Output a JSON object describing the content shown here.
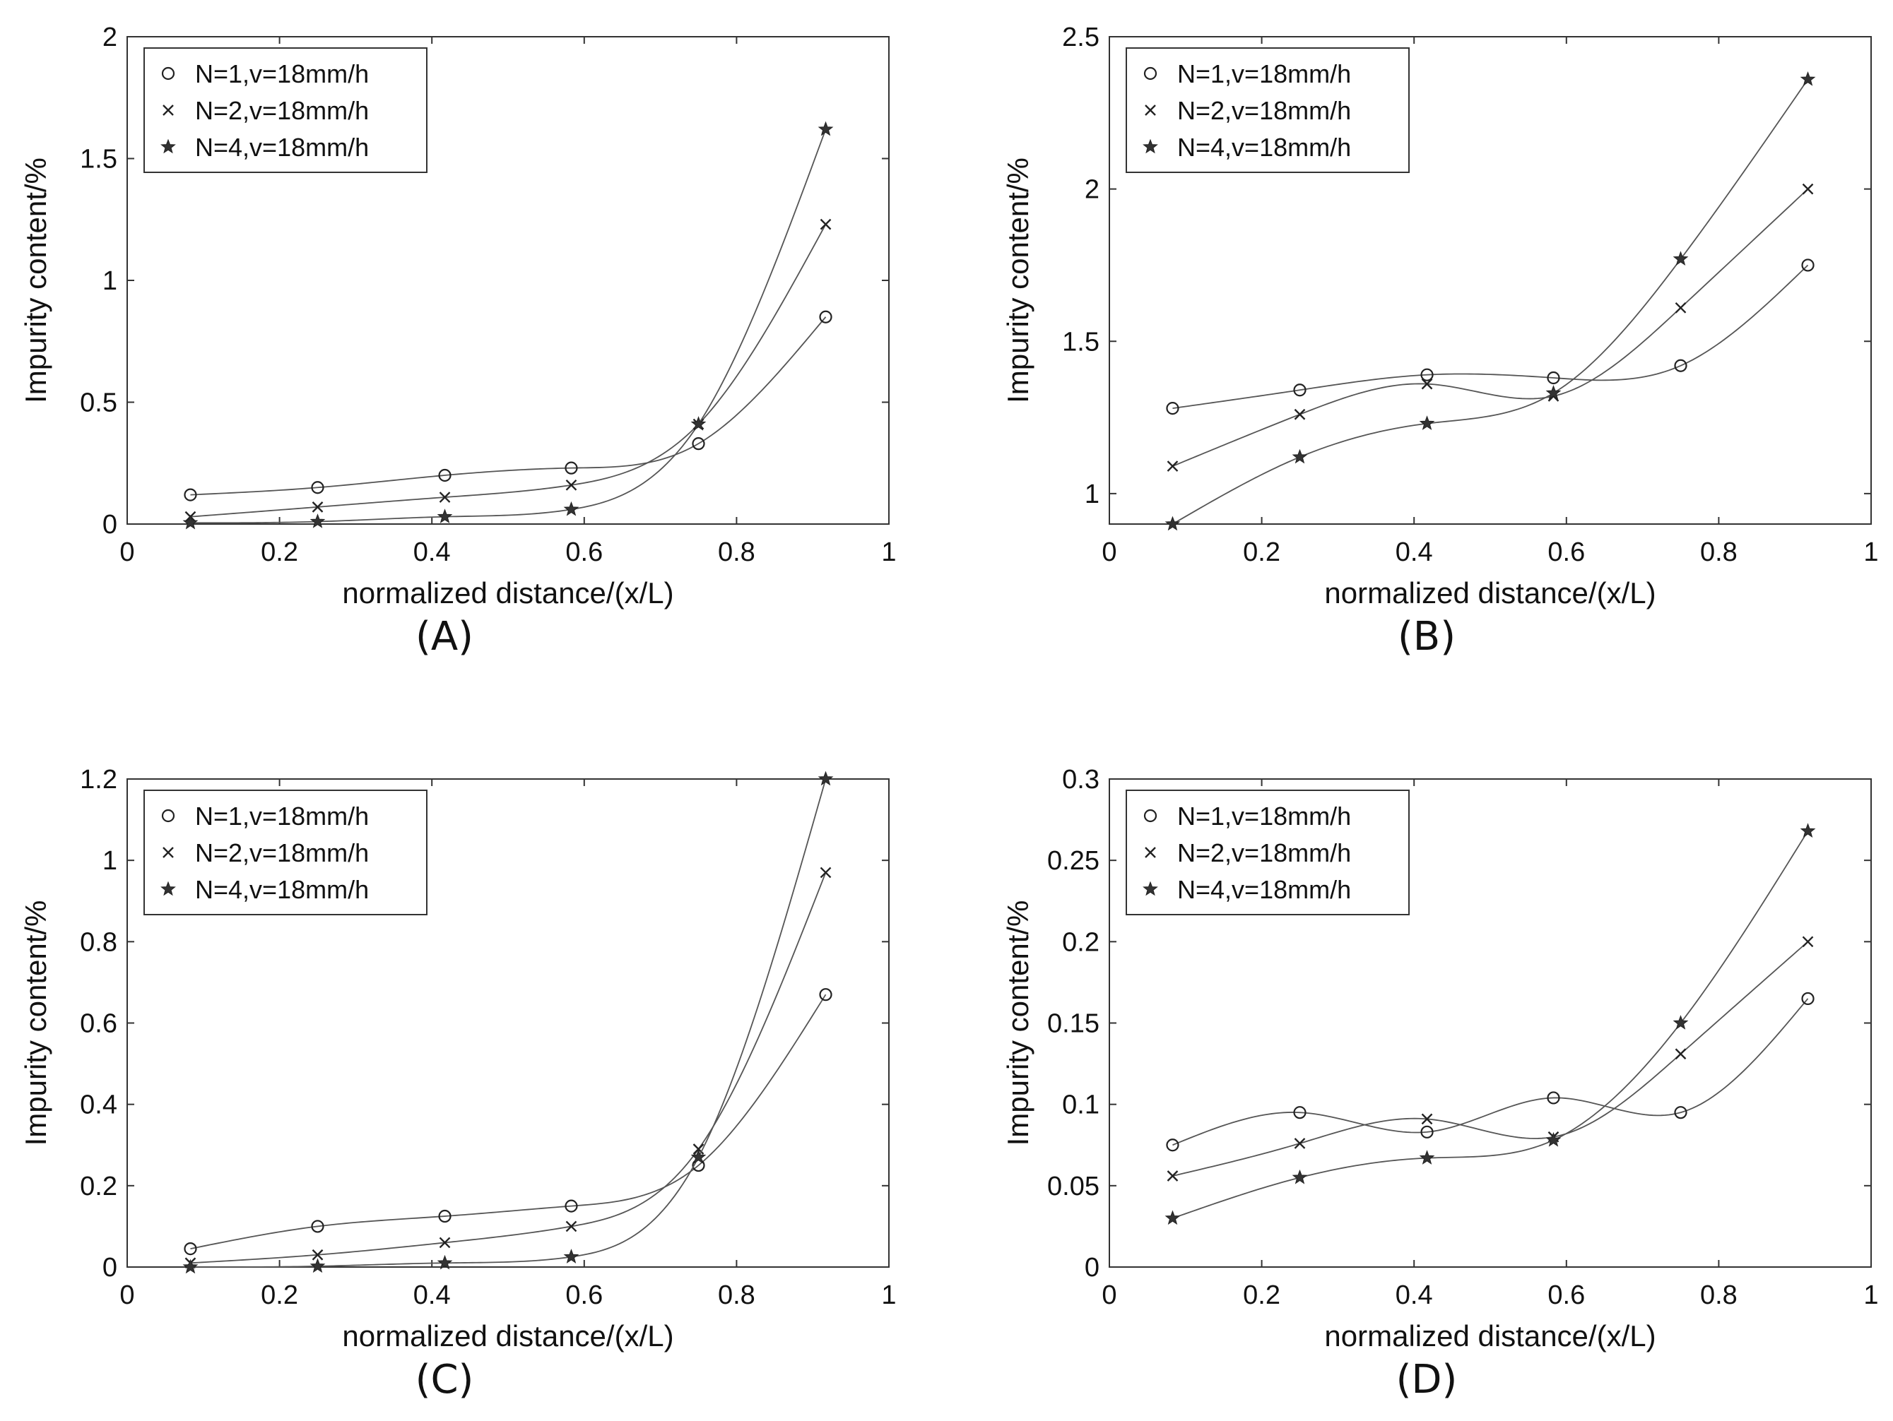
{
  "chart_data": [
    {
      "type": "line",
      "panel_label": "(A)",
      "xlabel": "normalized distance/(x/L)",
      "ylabel": "Impurity content/%",
      "xlim": [
        0,
        1
      ],
      "ylim": [
        0,
        2
      ],
      "xticks": [
        0,
        0.2,
        0.4,
        0.6,
        0.8,
        1
      ],
      "xtick_labels": [
        "0",
        "0.2",
        "0.4",
        "0.6",
        "0.8",
        "1"
      ],
      "yticks": [
        0,
        0.5,
        1,
        1.5,
        2
      ],
      "ytick_labels": [
        "0",
        "0.5",
        "1",
        "1.5",
        "2"
      ],
      "legend": "top-left",
      "x": [
        0.083,
        0.25,
        0.417,
        0.583,
        0.75,
        0.917
      ],
      "series": [
        {
          "name": "N=1,v=18mm/h",
          "marker": "circle",
          "values": [
            0.12,
            0.15,
            0.2,
            0.23,
            0.33,
            0.85
          ]
        },
        {
          "name": "N=2,v=18mm/h",
          "marker": "x",
          "values": [
            0.03,
            0.07,
            0.11,
            0.16,
            0.41,
            1.23
          ]
        },
        {
          "name": "N=4,v=18mm/h",
          "marker": "star",
          "values": [
            0.005,
            0.01,
            0.03,
            0.06,
            0.41,
            1.62
          ]
        }
      ]
    },
    {
      "type": "line",
      "panel_label": "(B)",
      "xlabel": "normalized distance/(x/L)",
      "ylabel": "Impurity content/%",
      "xlim": [
        0,
        1
      ],
      "ylim": [
        0.9,
        2.5
      ],
      "xticks": [
        0,
        0.2,
        0.4,
        0.6,
        0.8,
        1
      ],
      "xtick_labels": [
        "0",
        "0.2",
        "0.4",
        "0.6",
        "0.8",
        "1"
      ],
      "yticks": [
        1,
        1.5,
        2,
        2.5
      ],
      "ytick_labels": [
        "1",
        "1.5",
        "2",
        "2.5"
      ],
      "legend": "top-left",
      "x": [
        0.083,
        0.25,
        0.417,
        0.583,
        0.75,
        0.917
      ],
      "series": [
        {
          "name": "N=1,v=18mm/h",
          "marker": "circle",
          "values": [
            1.28,
            1.34,
            1.39,
            1.38,
            1.42,
            1.75
          ]
        },
        {
          "name": "N=2,v=18mm/h",
          "marker": "x",
          "values": [
            1.09,
            1.26,
            1.36,
            1.32,
            1.61,
            2.0
          ]
        },
        {
          "name": "N=4,v=18mm/h",
          "marker": "star",
          "values": [
            0.9,
            1.12,
            1.23,
            1.33,
            1.77,
            2.36
          ]
        }
      ]
    },
    {
      "type": "line",
      "panel_label": "(C)",
      "xlabel": "normalized distance/(x/L)",
      "ylabel": "Impurity content/%",
      "xlim": [
        0,
        1
      ],
      "ylim": [
        0,
        1.2
      ],
      "xticks": [
        0,
        0.2,
        0.4,
        0.6,
        0.8,
        1
      ],
      "xtick_labels": [
        "0",
        "0.2",
        "0.4",
        "0.6",
        "0.8",
        "1"
      ],
      "yticks": [
        0,
        0.2,
        0.4,
        0.6,
        0.8,
        1,
        1.2
      ],
      "ytick_labels": [
        "0",
        "0.2",
        "0.4",
        "0.6",
        "0.8",
        "1",
        "1.2"
      ],
      "legend": "top-left",
      "x": [
        0.083,
        0.25,
        0.417,
        0.583,
        0.75,
        0.917
      ],
      "series": [
        {
          "name": "N=1,v=18mm/h",
          "marker": "circle",
          "values": [
            0.045,
            0.1,
            0.125,
            0.15,
            0.25,
            0.67
          ]
        },
        {
          "name": "N=2,v=18mm/h",
          "marker": "x",
          "values": [
            0.01,
            0.03,
            0.06,
            0.1,
            0.29,
            0.97
          ]
        },
        {
          "name": "N=4,v=18mm/h",
          "marker": "star",
          "values": [
            0.0,
            0.002,
            0.01,
            0.025,
            0.27,
            1.2
          ]
        }
      ]
    },
    {
      "type": "line",
      "panel_label": "(D)",
      "xlabel": "normalized distance/(x/L)",
      "ylabel": "Impurity content/%",
      "xlim": [
        0,
        1
      ],
      "ylim": [
        0,
        0.3
      ],
      "xticks": [
        0,
        0.2,
        0.4,
        0.6,
        0.8,
        1
      ],
      "xtick_labels": [
        "0",
        "0.2",
        "0.4",
        "0.6",
        "0.8",
        "1"
      ],
      "yticks": [
        0,
        0.05,
        0.1,
        0.15,
        0.2,
        0.25,
        0.3
      ],
      "ytick_labels": [
        "0",
        "0.05",
        "0.1",
        "0.15",
        "0.2",
        "0.25",
        "0.3"
      ],
      "legend": "top-left",
      "x": [
        0.083,
        0.25,
        0.417,
        0.583,
        0.75,
        0.917
      ],
      "series": [
        {
          "name": "N=1,v=18mm/h",
          "marker": "circle",
          "values": [
            0.075,
            0.095,
            0.083,
            0.104,
            0.095,
            0.165
          ]
        },
        {
          "name": "N=2,v=18mm/h",
          "marker": "x",
          "values": [
            0.056,
            0.076,
            0.091,
            0.08,
            0.131,
            0.2
          ]
        },
        {
          "name": "N=4,v=18mm/h",
          "marker": "star",
          "values": [
            0.03,
            0.055,
            0.067,
            0.078,
            0.15,
            0.268
          ]
        }
      ]
    }
  ]
}
